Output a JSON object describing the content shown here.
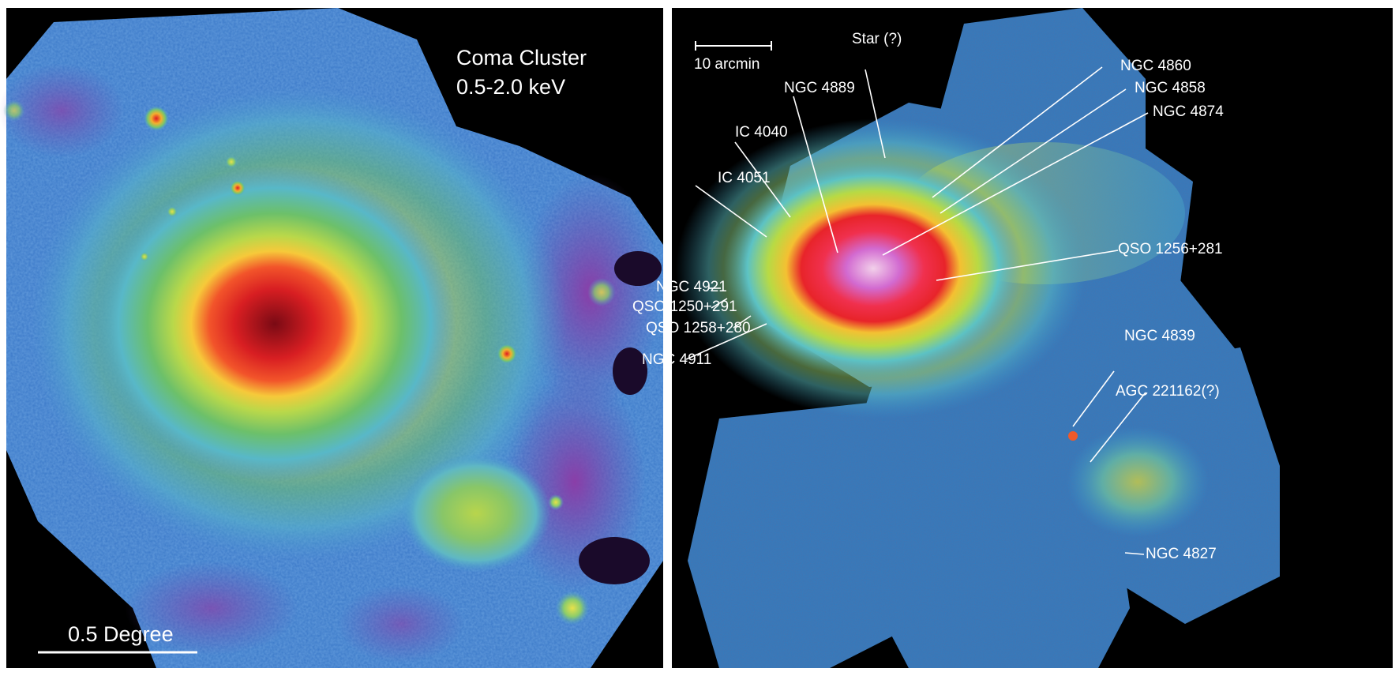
{
  "left_panel": {
    "title_line1": "Coma Cluster",
    "title_line2": "0.5-2.0 keV",
    "scale_label": "0.5 Degree"
  },
  "right_panel": {
    "scale_label": "10 arcmin",
    "labels": {
      "star": "Star (?)",
      "ngc4860": "NGC 4860",
      "ngc4858": "NGC 4858",
      "ngc4874": "NGC 4874",
      "ngc4889": "NGC 4889",
      "ic4040": "IC 4040",
      "ic4051": "IC 4051",
      "qso1256": "QSO 1256+281",
      "ngc4921": "NGC 4921",
      "qso1250": "QSO 1250+291",
      "qso1258": "QSO 1258+280",
      "ngc4911": "NGC 4911",
      "ngc4839": "NGC 4839",
      "agc221162": "AGC 221162(?)",
      "ngc4827": "NGC 4827"
    }
  }
}
